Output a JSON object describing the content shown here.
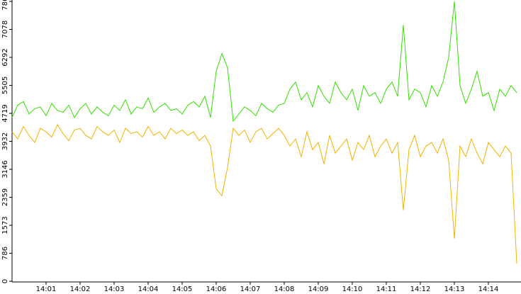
{
  "chart_data": {
    "type": "line",
    "categories": [
      null,
      null,
      null,
      null,
      null,
      null,
      "14:01",
      null,
      null,
      null,
      null,
      null,
      "14:02",
      null,
      null,
      null,
      null,
      null,
      "14:03",
      null,
      null,
      null,
      null,
      null,
      "14:04",
      null,
      null,
      null,
      null,
      null,
      "14:05",
      null,
      null,
      null,
      null,
      null,
      "14:06",
      null,
      null,
      null,
      null,
      null,
      "14:07",
      null,
      null,
      null,
      null,
      null,
      "14:08",
      null,
      null,
      null,
      null,
      null,
      "14:09",
      null,
      null,
      null,
      null,
      null,
      "14:10",
      null,
      null,
      null,
      null,
      null,
      "14:11",
      null,
      null,
      null,
      null,
      null,
      "14:12",
      null,
      null,
      null,
      null,
      null,
      "14:13",
      null,
      null,
      null,
      null,
      null,
      "14:14",
      null,
      null,
      null,
      null,
      null
    ],
    "series": [
      {
        "color": "#33e000",
        "values": [
          4600,
          4950,
          5050,
          4700,
          4850,
          4900,
          4650,
          5000,
          4800,
          4750,
          4950,
          4600,
          4850,
          5000,
          4700,
          4900,
          4750,
          4650,
          4950,
          4800,
          5100,
          4700,
          4900,
          4850,
          5150,
          4750,
          4900,
          5000,
          4800,
          4850,
          4700,
          4950,
          5050,
          4900,
          5200,
          4600,
          5900,
          6400,
          6000,
          4500,
          4700,
          4900,
          4800,
          4650,
          5000,
          4850,
          4750,
          4950,
          5000,
          5400,
          5600,
          5100,
          5300,
          4900,
          5500,
          5200,
          5000,
          5600,
          5300,
          5100,
          5400,
          4800,
          5500,
          5200,
          5300,
          5000,
          5400,
          5600,
          5200,
          7200,
          5100,
          5400,
          5300,
          4900,
          5500,
          5200,
          5600,
          6300,
          7865,
          5500,
          5000,
          5400,
          5900,
          5200,
          5300,
          4800,
          5400,
          5200,
          5500,
          5300
        ]
      },
      {
        "color": "#f0b400",
        "values": [
          4200,
          4000,
          4350,
          4100,
          3900,
          4300,
          4200,
          4050,
          4400,
          4150,
          3950,
          4250,
          4300,
          4100,
          4000,
          4350,
          4200,
          4100,
          4250,
          3900,
          4300,
          4150,
          4200,
          4050,
          4350,
          4100,
          4200,
          4000,
          4300,
          4150,
          4250,
          4100,
          4200,
          3950,
          4100,
          3800,
          2600,
          2400,
          3200,
          4300,
          4100,
          4250,
          3900,
          4200,
          4300,
          4000,
          4150,
          4300,
          4100,
          3800,
          4000,
          3500,
          4200,
          3700,
          3900,
          3300,
          4100,
          3600,
          3800,
          4000,
          3400,
          3900,
          3700,
          4100,
          3500,
          3800,
          4000,
          3600,
          3900,
          2000,
          3700,
          4100,
          3500,
          3800,
          3900,
          3600,
          4000,
          3400,
          1200,
          3800,
          3500,
          4000,
          3600,
          3300,
          3900,
          3700,
          3500,
          3800,
          3600,
          500
        ]
      }
    ],
    "ylim": [
      0,
      7865
    ],
    "yticks": [
      0,
      786,
      1573,
      2359,
      3146,
      3932,
      4719,
      5505,
      6292,
      7078,
      7865
    ]
  }
}
